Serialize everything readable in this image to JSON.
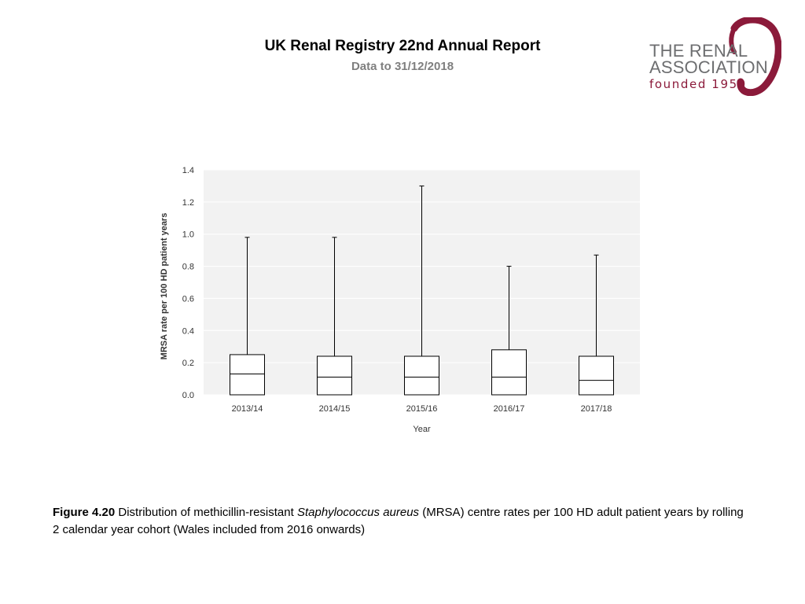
{
  "header": {
    "title": "UK Renal Registry 22nd Annual Report",
    "subtitle": "Data to 31/12/2018"
  },
  "logo": {
    "line1": "THE RENAL",
    "line2": "ASSOCIATION",
    "line3": "founded 1950",
    "color": "#8b1a3a"
  },
  "caption": {
    "figure_label": "Figure 4.20",
    "text_before": "Distribution of methicillin-resistant",
    "italic": "Staphylococcus aureus",
    "text_after": "(MRSA) centre rates per 100 HD adult patient years by rolling 2 calendar year cohort (Wales included from 2016 onwards)"
  },
  "chart_data": {
    "type": "boxplot",
    "xlabel": "Year",
    "ylabel": "MRSA rate per 100 HD patient years",
    "ylim": [
      0,
      1.4
    ],
    "yticks": [
      "0.0",
      "0.2",
      "0.4",
      "0.6",
      "0.8",
      "1.0",
      "1.2",
      "1.4"
    ],
    "grid": true,
    "categories": [
      "2013/14",
      "2014/15",
      "2015/16",
      "2016/17",
      "2017/18"
    ],
    "boxes": [
      {
        "min": 0.0,
        "q1": 0.0,
        "median": 0.13,
        "q3": 0.25,
        "max": 0.98
      },
      {
        "min": 0.0,
        "q1": 0.0,
        "median": 0.11,
        "q3": 0.24,
        "max": 0.98
      },
      {
        "min": 0.0,
        "q1": 0.0,
        "median": 0.11,
        "q3": 0.24,
        "max": 1.3
      },
      {
        "min": 0.0,
        "q1": 0.0,
        "median": 0.11,
        "q3": 0.28,
        "max": 0.8
      },
      {
        "min": 0.0,
        "q1": 0.0,
        "median": 0.09,
        "q3": 0.24,
        "max": 0.87
      }
    ],
    "colors": {
      "plot_bg": "#f2f2f2",
      "grid": "#ffffff",
      "box_fill": "#ffffff",
      "stroke": "#000000"
    }
  }
}
